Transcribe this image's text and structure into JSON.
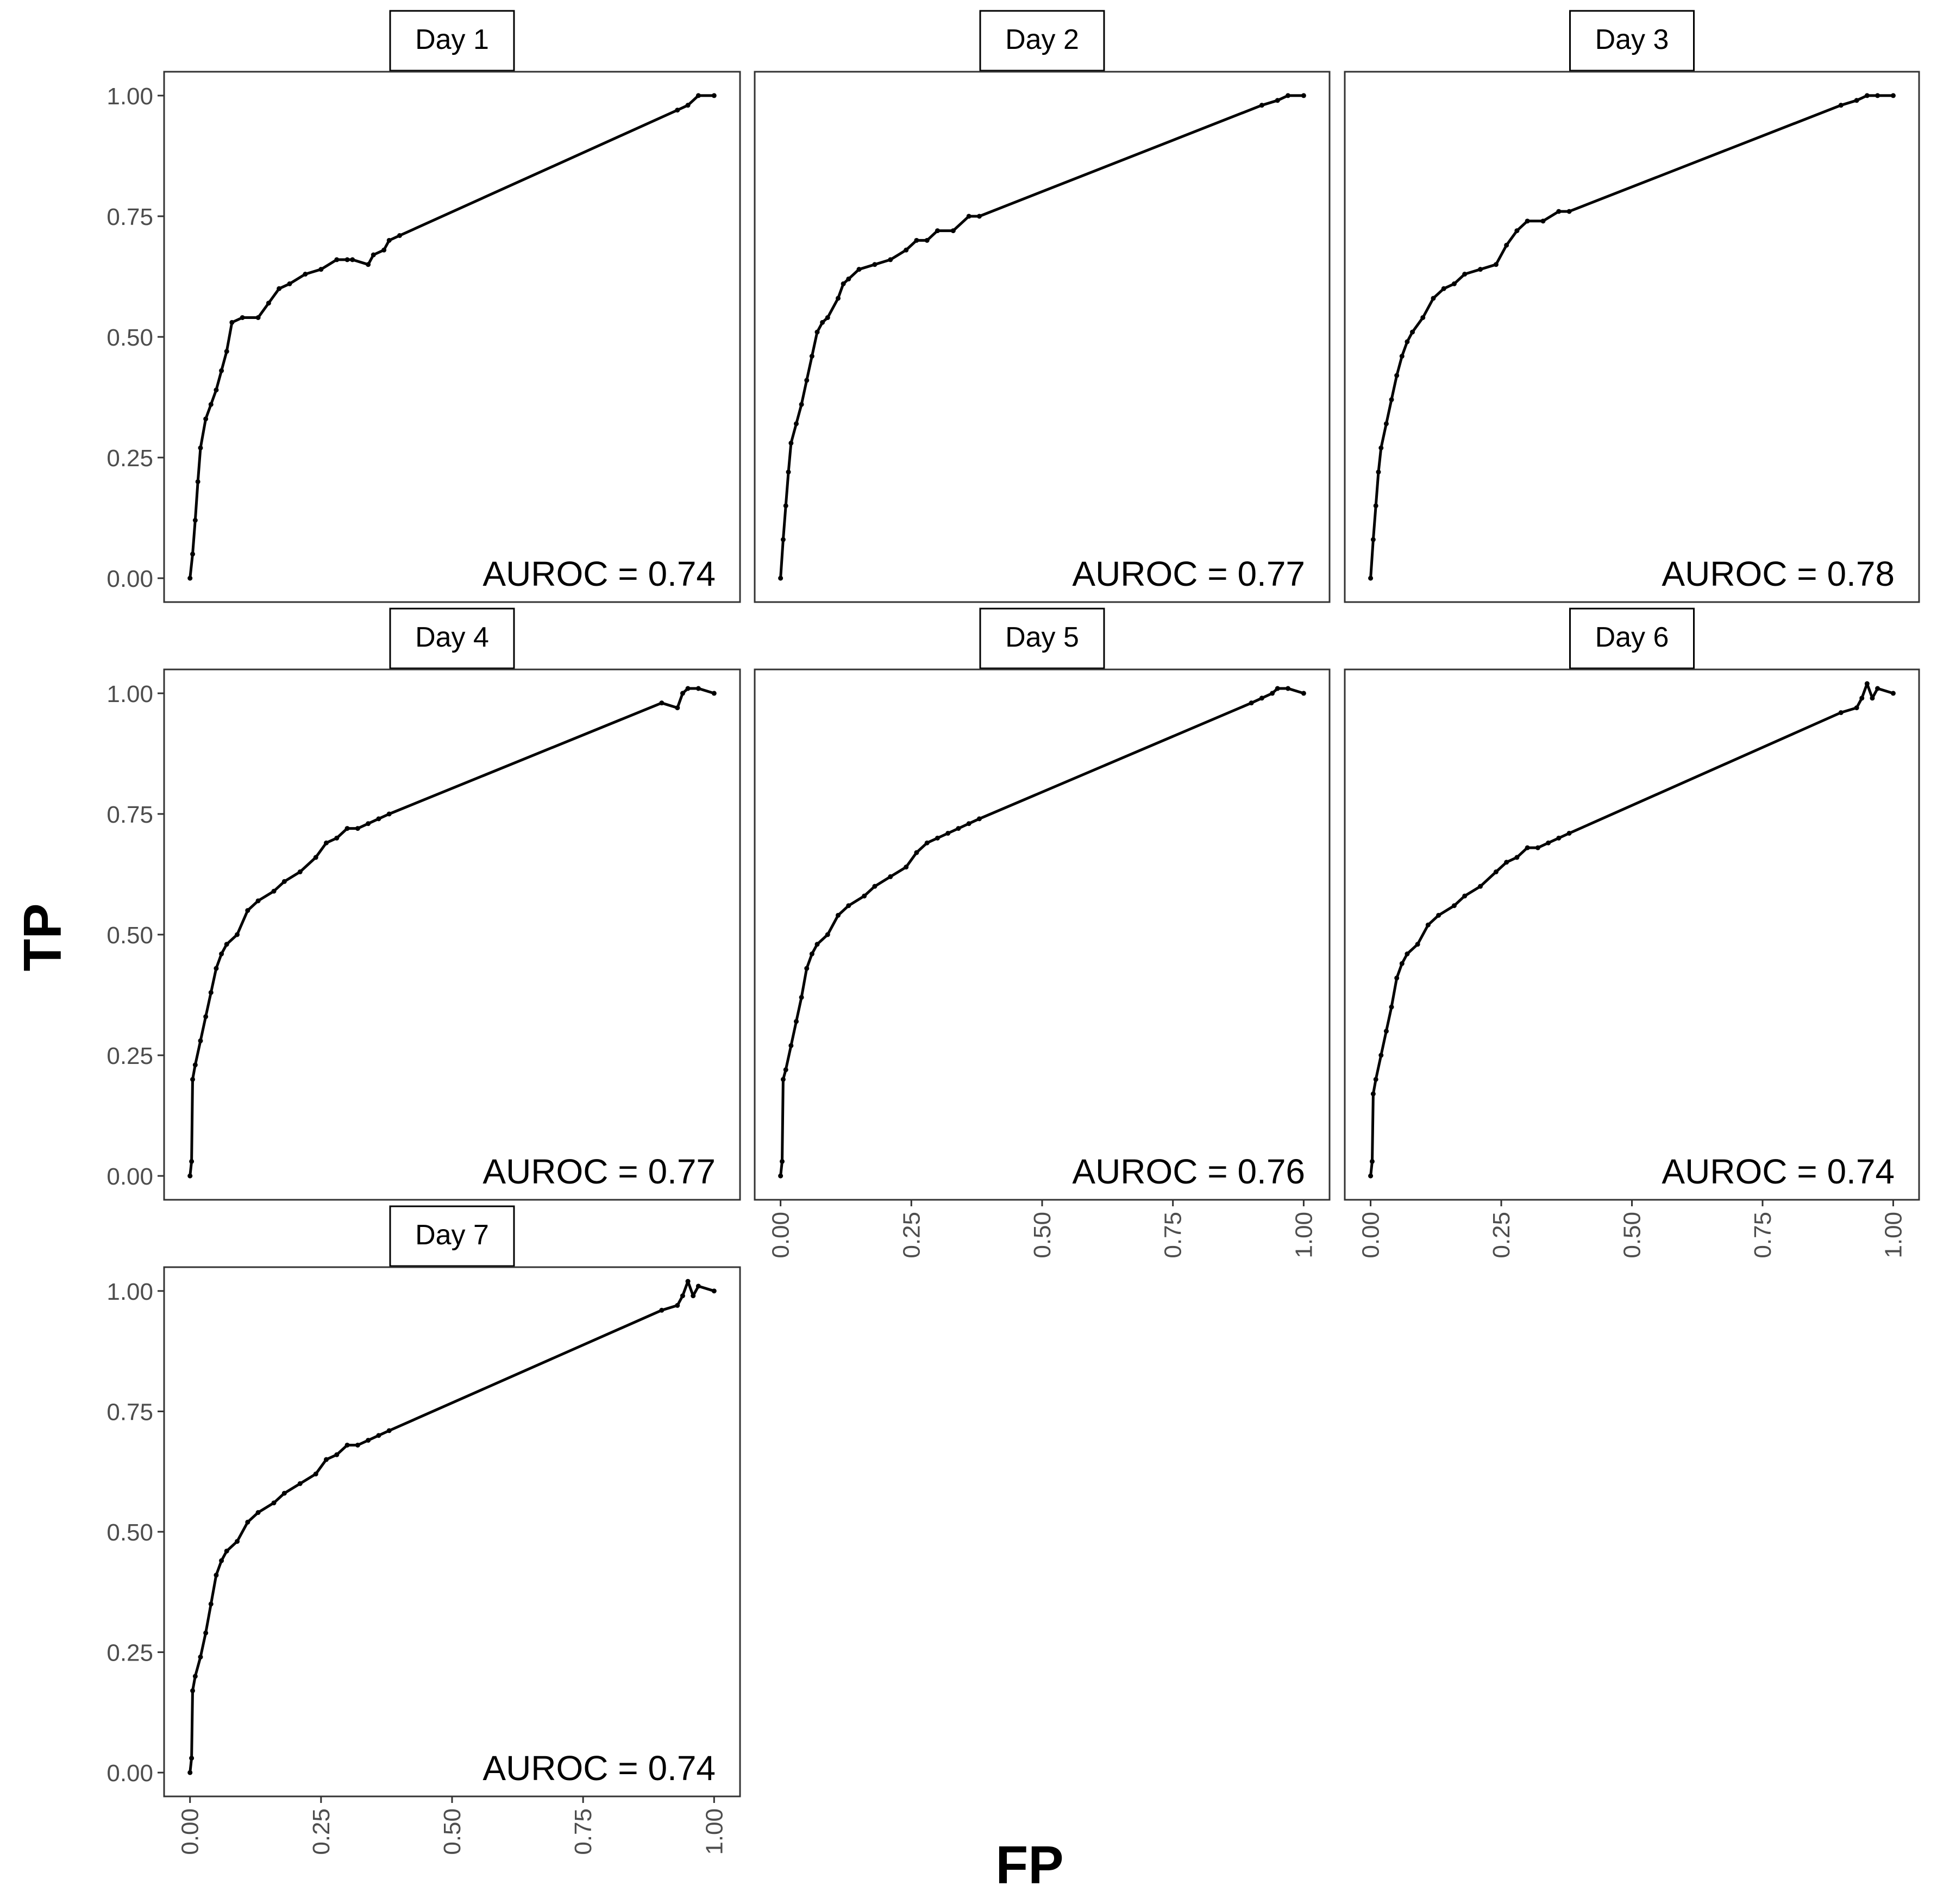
{
  "chart_data": {
    "type": "line",
    "facet": "roc",
    "xlabel": "FP",
    "ylabel": "TP",
    "xlim": [
      0,
      1
    ],
    "ylim": [
      0,
      1
    ],
    "x_ticks": [
      "0.00",
      "0.25",
      "0.50",
      "0.75",
      "1.00"
    ],
    "y_ticks": [
      "0.00",
      "0.25",
      "0.50",
      "0.75",
      "1.00"
    ],
    "grid": false,
    "panels": [
      {
        "title": "Day 1",
        "annotation": "AUROC = 0.74",
        "x": [
          0,
          0.005,
          0.01,
          0.015,
          0.02,
          0.03,
          0.04,
          0.05,
          0.06,
          0.07,
          0.08,
          0.1,
          0.13,
          0.15,
          0.17,
          0.19,
          0.22,
          0.25,
          0.28,
          0.3,
          0.31,
          0.34,
          0.35,
          0.37,
          0.38,
          0.4,
          0.93,
          0.95,
          0.97,
          1.0
        ],
        "y": [
          0,
          0.05,
          0.12,
          0.2,
          0.27,
          0.33,
          0.36,
          0.39,
          0.43,
          0.47,
          0.53,
          0.54,
          0.54,
          0.57,
          0.6,
          0.61,
          0.63,
          0.64,
          0.66,
          0.66,
          0.66,
          0.65,
          0.67,
          0.68,
          0.7,
          0.71,
          0.97,
          0.98,
          1.0,
          1.0
        ]
      },
      {
        "title": "Day 2",
        "annotation": "AUROC = 0.77",
        "x": [
          0,
          0.005,
          0.01,
          0.015,
          0.02,
          0.03,
          0.04,
          0.05,
          0.06,
          0.07,
          0.08,
          0.09,
          0.11,
          0.12,
          0.13,
          0.15,
          0.18,
          0.21,
          0.24,
          0.26,
          0.28,
          0.3,
          0.33,
          0.36,
          0.38,
          0.92,
          0.95,
          0.97,
          1.0
        ],
        "y": [
          0,
          0.08,
          0.15,
          0.22,
          0.28,
          0.32,
          0.36,
          0.41,
          0.46,
          0.51,
          0.53,
          0.54,
          0.58,
          0.61,
          0.62,
          0.64,
          0.65,
          0.66,
          0.68,
          0.7,
          0.7,
          0.72,
          0.72,
          0.75,
          0.75,
          0.98,
          0.99,
          1.0,
          1.0
        ]
      },
      {
        "title": "Day 3",
        "annotation": "AUROC = 0.78",
        "x": [
          0,
          0.005,
          0.01,
          0.015,
          0.02,
          0.03,
          0.04,
          0.05,
          0.06,
          0.07,
          0.08,
          0.1,
          0.12,
          0.14,
          0.16,
          0.18,
          0.21,
          0.24,
          0.26,
          0.28,
          0.3,
          0.33,
          0.36,
          0.38,
          0.9,
          0.93,
          0.95,
          0.97,
          1.0
        ],
        "y": [
          0,
          0.08,
          0.15,
          0.22,
          0.27,
          0.32,
          0.37,
          0.42,
          0.46,
          0.49,
          0.51,
          0.54,
          0.58,
          0.6,
          0.61,
          0.63,
          0.64,
          0.65,
          0.69,
          0.72,
          0.74,
          0.74,
          0.76,
          0.76,
          0.98,
          0.99,
          1.0,
          1.0,
          1.0
        ]
      },
      {
        "title": "Day 4",
        "annotation": "AUROC = 0.77",
        "x": [
          0,
          0.003,
          0.005,
          0.01,
          0.02,
          0.03,
          0.04,
          0.05,
          0.06,
          0.07,
          0.09,
          0.11,
          0.13,
          0.16,
          0.18,
          0.21,
          0.24,
          0.26,
          0.28,
          0.3,
          0.32,
          0.34,
          0.36,
          0.38,
          0.9,
          0.93,
          0.94,
          0.95,
          0.97,
          1.0
        ],
        "y": [
          0,
          0.03,
          0.2,
          0.23,
          0.28,
          0.33,
          0.38,
          0.43,
          0.46,
          0.48,
          0.5,
          0.55,
          0.57,
          0.59,
          0.61,
          0.63,
          0.66,
          0.69,
          0.7,
          0.72,
          0.72,
          0.73,
          0.74,
          0.75,
          0.98,
          0.97,
          1.0,
          1.01,
          1.01,
          1.0
        ]
      },
      {
        "title": "Day 5",
        "annotation": "AUROC = 0.76",
        "x": [
          0,
          0.003,
          0.005,
          0.01,
          0.02,
          0.03,
          0.04,
          0.05,
          0.06,
          0.07,
          0.09,
          0.11,
          0.13,
          0.16,
          0.18,
          0.21,
          0.24,
          0.26,
          0.28,
          0.3,
          0.32,
          0.34,
          0.36,
          0.38,
          0.9,
          0.92,
          0.94,
          0.95,
          0.97,
          1.0
        ],
        "y": [
          0,
          0.03,
          0.2,
          0.22,
          0.27,
          0.32,
          0.37,
          0.43,
          0.46,
          0.48,
          0.5,
          0.54,
          0.56,
          0.58,
          0.6,
          0.62,
          0.64,
          0.67,
          0.69,
          0.7,
          0.71,
          0.72,
          0.73,
          0.74,
          0.98,
          0.99,
          1.0,
          1.01,
          1.01,
          1.0
        ]
      },
      {
        "title": "Day 6",
        "annotation": "AUROC = 0.74",
        "x": [
          0,
          0.003,
          0.005,
          0.01,
          0.02,
          0.03,
          0.04,
          0.05,
          0.06,
          0.07,
          0.09,
          0.11,
          0.13,
          0.16,
          0.18,
          0.21,
          0.24,
          0.26,
          0.28,
          0.3,
          0.32,
          0.34,
          0.36,
          0.38,
          0.9,
          0.93,
          0.94,
          0.95,
          0.96,
          0.97,
          1.0
        ],
        "y": [
          0,
          0.03,
          0.17,
          0.2,
          0.25,
          0.3,
          0.35,
          0.41,
          0.44,
          0.46,
          0.48,
          0.52,
          0.54,
          0.56,
          0.58,
          0.6,
          0.63,
          0.65,
          0.66,
          0.68,
          0.68,
          0.69,
          0.7,
          0.71,
          0.96,
          0.97,
          0.99,
          1.02,
          0.99,
          1.01,
          1.0
        ]
      },
      {
        "title": "Day 7",
        "annotation": "AUROC = 0.74",
        "x": [
          0,
          0.003,
          0.005,
          0.01,
          0.02,
          0.03,
          0.04,
          0.05,
          0.06,
          0.07,
          0.09,
          0.11,
          0.13,
          0.16,
          0.18,
          0.21,
          0.24,
          0.26,
          0.28,
          0.3,
          0.32,
          0.34,
          0.36,
          0.38,
          0.9,
          0.93,
          0.94,
          0.95,
          0.96,
          0.97,
          1.0
        ],
        "y": [
          0,
          0.03,
          0.17,
          0.2,
          0.24,
          0.29,
          0.35,
          0.41,
          0.44,
          0.46,
          0.48,
          0.52,
          0.54,
          0.56,
          0.58,
          0.6,
          0.62,
          0.65,
          0.66,
          0.68,
          0.68,
          0.69,
          0.7,
          0.71,
          0.96,
          0.97,
          0.99,
          1.02,
          0.99,
          1.01,
          1.0
        ]
      }
    ]
  }
}
